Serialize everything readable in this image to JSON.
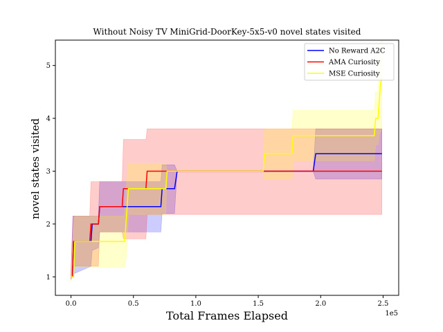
{
  "chart_data": {
    "type": "line",
    "title": "Without Noisy TV MiniGrid-DoorKey-5x5-v0 novel states visited",
    "xlabel": "Total Frames Elapsed",
    "ylabel": "novel states visited",
    "x_offset_label": "1e5",
    "xlim": [
      -12500,
      262500
    ],
    "ylim": [
      0.65,
      5.48
    ],
    "x_ticks": [
      0,
      50000,
      100000,
      150000,
      200000,
      250000
    ],
    "x_tick_labels": [
      "0.0",
      "0.5",
      "1.0",
      "1.5",
      "2.0",
      "2.5"
    ],
    "y_ticks": [
      1,
      2,
      3,
      4,
      5
    ],
    "y_tick_labels": [
      "1",
      "2",
      "3",
      "4",
      "5"
    ],
    "legend_position": "upper-right",
    "series": [
      {
        "name": "No Reward A2C",
        "color": "#0000ff",
        "mean": [
          [
            0,
            1.0
          ],
          [
            1200,
            1.0
          ],
          [
            2000,
            1.67
          ],
          [
            16000,
            1.67
          ],
          [
            17000,
            2.0
          ],
          [
            22000,
            2.0
          ],
          [
            23000,
            2.33
          ],
          [
            72000,
            2.33
          ],
          [
            73000,
            2.67
          ],
          [
            83000,
            2.67
          ],
          [
            85000,
            3.0
          ],
          [
            194000,
            3.0
          ],
          [
            196000,
            3.33
          ],
          [
            249000,
            3.33
          ]
        ],
        "band": [
          [
            0,
            0.95,
            1.1
          ],
          [
            1500,
            1.05,
            2.15
          ],
          [
            16000,
            1.2,
            2.15
          ],
          [
            17000,
            1.5,
            2.15
          ],
          [
            22000,
            1.55,
            2.15
          ],
          [
            23000,
            1.85,
            2.8
          ],
          [
            72000,
            1.85,
            2.8
          ],
          [
            73000,
            2.2,
            3.12
          ],
          [
            83000,
            2.2,
            3.12
          ],
          [
            85000,
            3.0,
            3.0
          ],
          [
            194000,
            3.0,
            3.0
          ],
          [
            196000,
            2.85,
            3.8
          ],
          [
            249000,
            2.85,
            3.8
          ]
        ]
      },
      {
        "name": "AMA Curiosity",
        "color": "#ff0000",
        "mean": [
          [
            0,
            1.0
          ],
          [
            1200,
            1.0
          ],
          [
            2000,
            1.67
          ],
          [
            15000,
            1.67
          ],
          [
            16000,
            2.0
          ],
          [
            22000,
            2.0
          ],
          [
            23000,
            2.33
          ],
          [
            41000,
            2.33
          ],
          [
            42000,
            2.67
          ],
          [
            60000,
            2.67
          ],
          [
            61000,
            3.0
          ],
          [
            249000,
            3.0
          ]
        ],
        "band": [
          [
            0,
            0.95,
            1.1
          ],
          [
            1500,
            1.2,
            2.15
          ],
          [
            15000,
            1.2,
            2.15
          ],
          [
            16000,
            1.2,
            2.8
          ],
          [
            22000,
            1.2,
            2.8
          ],
          [
            23000,
            1.85,
            2.8
          ],
          [
            41000,
            1.85,
            2.8
          ],
          [
            42000,
            1.72,
            3.6
          ],
          [
            60000,
            1.72,
            3.6
          ],
          [
            61000,
            2.18,
            3.8
          ],
          [
            249000,
            2.18,
            3.8
          ]
        ]
      },
      {
        "name": "MSE Curiosity",
        "color": "#ffff00",
        "mean": [
          [
            0,
            1.0
          ],
          [
            2000,
            1.0
          ],
          [
            3000,
            1.67
          ],
          [
            43000,
            1.67
          ],
          [
            44000,
            2.0
          ],
          [
            45000,
            2.33
          ],
          [
            46000,
            2.67
          ],
          [
            76000,
            2.67
          ],
          [
            77000,
            3.0
          ],
          [
            154000,
            3.0
          ],
          [
            155000,
            3.33
          ],
          [
            177000,
            3.33
          ],
          [
            178000,
            3.67
          ],
          [
            243000,
            3.67
          ],
          [
            244000,
            4.0
          ],
          [
            246000,
            4.0
          ],
          [
            247000,
            4.33
          ],
          [
            248000,
            4.67
          ],
          [
            249000,
            4.75
          ]
        ],
        "band": [
          [
            0,
            0.9,
            1.15
          ],
          [
            3000,
            1.18,
            2.15
          ],
          [
            43000,
            1.18,
            2.15
          ],
          [
            44000,
            1.3,
            2.6
          ],
          [
            45000,
            1.6,
            2.9
          ],
          [
            46000,
            2.18,
            3.15
          ],
          [
            76000,
            2.18,
            3.15
          ],
          [
            77000,
            3.0,
            3.0
          ],
          [
            154000,
            3.0,
            3.0
          ],
          [
            155000,
            2.85,
            3.8
          ],
          [
            177000,
            2.85,
            3.8
          ],
          [
            178000,
            3.2,
            4.15
          ],
          [
            243000,
            3.2,
            4.15
          ],
          [
            244000,
            3.5,
            4.5
          ],
          [
            246000,
            3.5,
            4.5
          ],
          [
            247000,
            3.7,
            4.9
          ],
          [
            249000,
            3.8,
            5.5
          ]
        ]
      }
    ]
  }
}
